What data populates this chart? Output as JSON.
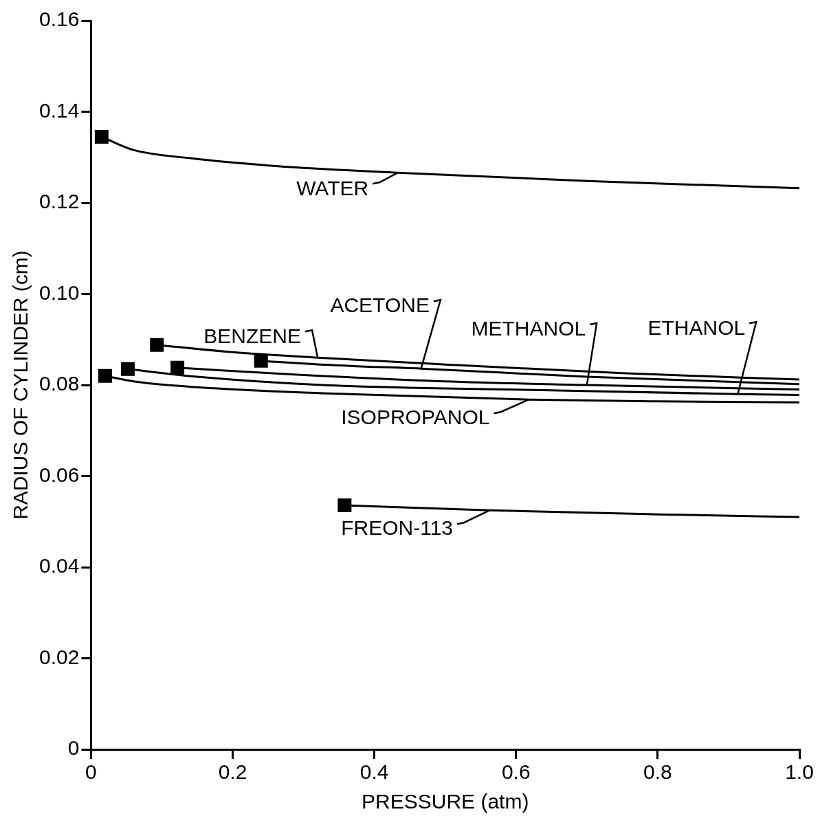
{
  "chart_data": {
    "type": "line",
    "xlabel": "PRESSURE (atm)",
    "ylabel": "RADIUS OF CYLINDER (cm)",
    "xlim": [
      0,
      1
    ],
    "xticks": [
      0,
      0.2,
      0.4,
      0.6,
      0.8,
      {
        "value": 1,
        "label": "1.0"
      }
    ],
    "ylim": [
      0,
      0.16
    ],
    "yticks": [
      0,
      0.02,
      0.04,
      0.06,
      0.08,
      {
        "value": 0.1,
        "label": "0.10"
      },
      0.12,
      0.14,
      0.16
    ],
    "grid": false,
    "legend": false,
    "line_style": "solid",
    "series": [
      {
        "type": "scatter",
        "marker": "square",
        "color": "#000000",
        "x": [
          0.015,
          0.093,
          0.24,
          0.122,
          0.052,
          0.02,
          0.358
        ],
        "values": [
          0.1345,
          0.0888,
          0.0853,
          0.0838,
          0.0835,
          0.082,
          0.0536
        ]
      },
      {
        "color": "#000000",
        "x": [
          0.015,
          0.06,
          0.14,
          0.25,
          0.433,
          0.7,
          1.0
        ],
        "values": [
          0.1345,
          0.1316,
          0.1298,
          0.1282,
          0.1266,
          0.1248,
          0.1232
        ]
      },
      {
        "color": "#000000",
        "x": [
          0.093,
          0.2,
          0.32,
          0.5,
          0.75,
          1.0
        ],
        "values": [
          0.0888,
          0.0872,
          0.086,
          0.0845,
          0.0826,
          0.0812
        ]
      },
      {
        "color": "#000000",
        "x": [
          0.24,
          0.35,
          0.466,
          0.7,
          1.0
        ],
        "values": [
          0.0853,
          0.0843,
          0.0836,
          0.0818,
          0.0802
        ]
      },
      {
        "color": "#000000",
        "x": [
          0.122,
          0.3,
          0.5,
          0.7,
          1.0
        ],
        "values": [
          0.0838,
          0.0822,
          0.0808,
          0.08,
          0.079
        ]
      },
      {
        "color": "#000000",
        "x": [
          0.052,
          0.15,
          0.326,
          0.66,
          0.913,
          1.0
        ],
        "values": [
          0.0835,
          0.0818,
          0.08,
          0.0788,
          0.078,
          0.0778
        ]
      },
      {
        "color": "#000000",
        "x": [
          0.02,
          0.06,
          0.15,
          0.326,
          0.618,
          0.8,
          1.0
        ],
        "values": [
          0.082,
          0.0808,
          0.0795,
          0.0782,
          0.0768,
          0.0764,
          0.0762
        ]
      },
      {
        "color": "#000000",
        "x": [
          0.358,
          0.563,
          0.8,
          1.0
        ],
        "values": [
          0.0536,
          0.0525,
          0.0516,
          0.051
        ]
      }
    ],
    "annotations": [
      {
        "text": "WATER",
        "x": 0.433,
        "y": 0.1266
      },
      {
        "text": "BENZENE",
        "x": 0.32,
        "y": 0.086
      },
      {
        "text": "ACETONE",
        "x": 0.466,
        "y": 0.0836
      },
      {
        "text": "METHANOL",
        "x": 0.7,
        "y": 0.08
      },
      {
        "text": "ETHANOL",
        "x": 0.913,
        "y": 0.078
      },
      {
        "text": "ISOPROPANOL",
        "x": 0.618,
        "y": 0.0768
      },
      {
        "text": "FREON-113",
        "x": 0.563,
        "y": 0.0525
      }
    ]
  }
}
